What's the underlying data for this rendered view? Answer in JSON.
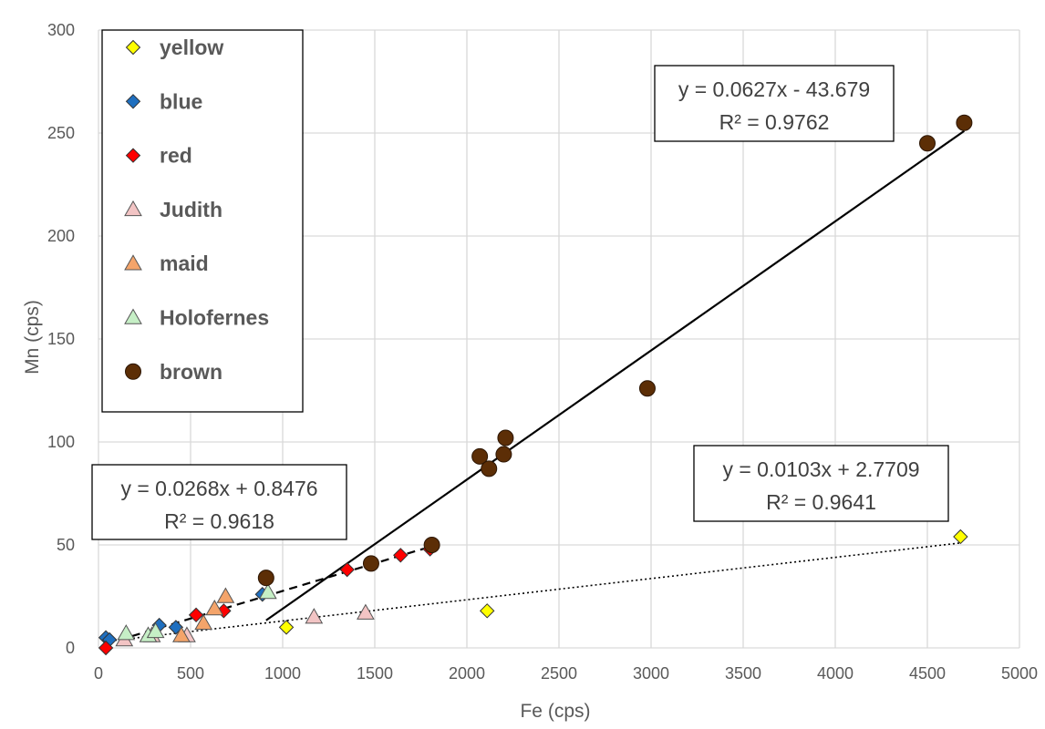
{
  "chart_data": {
    "type": "scatter",
    "xlabel": "Fe (cps)",
    "ylabel": "Mn (cps)",
    "xlim": [
      0,
      5000
    ],
    "ylim": [
      0,
      300
    ],
    "xticks": [
      0,
      500,
      1000,
      1500,
      2000,
      2500,
      3000,
      3500,
      4000,
      4500,
      5000
    ],
    "yticks": [
      0,
      50,
      100,
      150,
      200,
      250,
      300
    ],
    "grid": true,
    "legend_position": "top-left",
    "series": [
      {
        "name": "yellow",
        "marker": "diamond",
        "color": "#ffff00",
        "points": [
          [
            1020,
            10
          ],
          [
            2110,
            18
          ],
          [
            4680,
            54
          ]
        ]
      },
      {
        "name": "blue",
        "marker": "diamond",
        "color": "#1f6fbf",
        "points": [
          [
            40,
            5
          ],
          [
            60,
            4
          ],
          [
            330,
            11
          ],
          [
            420,
            10
          ],
          [
            890,
            26
          ]
        ]
      },
      {
        "name": "red",
        "marker": "diamond",
        "color": "#ff0000",
        "points": [
          [
            40,
            0
          ],
          [
            530,
            16
          ],
          [
            680,
            18
          ],
          [
            1350,
            38
          ],
          [
            1640,
            45
          ],
          [
            1800,
            48
          ]
        ]
      },
      {
        "name": "Judith",
        "marker": "triangle",
        "color": "#f2c4c4",
        "points": [
          [
            140,
            4
          ],
          [
            290,
            6
          ],
          [
            480,
            6
          ],
          [
            1170,
            15
          ],
          [
            1450,
            17
          ]
        ]
      },
      {
        "name": "maid",
        "marker": "triangle",
        "color": "#f4a46a",
        "points": [
          [
            450,
            6
          ],
          [
            570,
            12
          ],
          [
            630,
            19
          ],
          [
            690,
            25
          ]
        ]
      },
      {
        "name": "Holofernes",
        "marker": "triangle",
        "color": "#c6efc6",
        "points": [
          [
            150,
            7
          ],
          [
            270,
            6
          ],
          [
            310,
            8
          ],
          [
            920,
            27
          ]
        ]
      },
      {
        "name": "brown",
        "marker": "circle",
        "color": "#5c2e06",
        "points": [
          [
            910,
            34
          ],
          [
            1480,
            41
          ],
          [
            1810,
            50
          ],
          [
            2070,
            93
          ],
          [
            2120,
            87
          ],
          [
            2200,
            94
          ],
          [
            2210,
            102
          ],
          [
            2980,
            126
          ],
          [
            4500,
            245
          ],
          [
            4700,
            255
          ]
        ]
      }
    ],
    "trendlines": [
      {
        "equation": "y = 0.0627x - 43.679",
        "r2": "R² = 0.9762",
        "slope": 0.0627,
        "intercept": -43.679,
        "x_range": [
          910,
          4700
        ],
        "style": "solid"
      },
      {
        "equation": "y = 0.0268x + 0.8476",
        "r2": "R² = 0.9618",
        "slope": 0.0268,
        "intercept": 0.8476,
        "x_range": [
          40,
          1810
        ],
        "style": "dashed"
      },
      {
        "equation": "y = 0.0103x + 2.7709",
        "r2": "R² = 0.9641",
        "slope": 0.0103,
        "intercept": 2.7709,
        "x_range": [
          40,
          4680
        ],
        "style": "dotted"
      }
    ]
  }
}
